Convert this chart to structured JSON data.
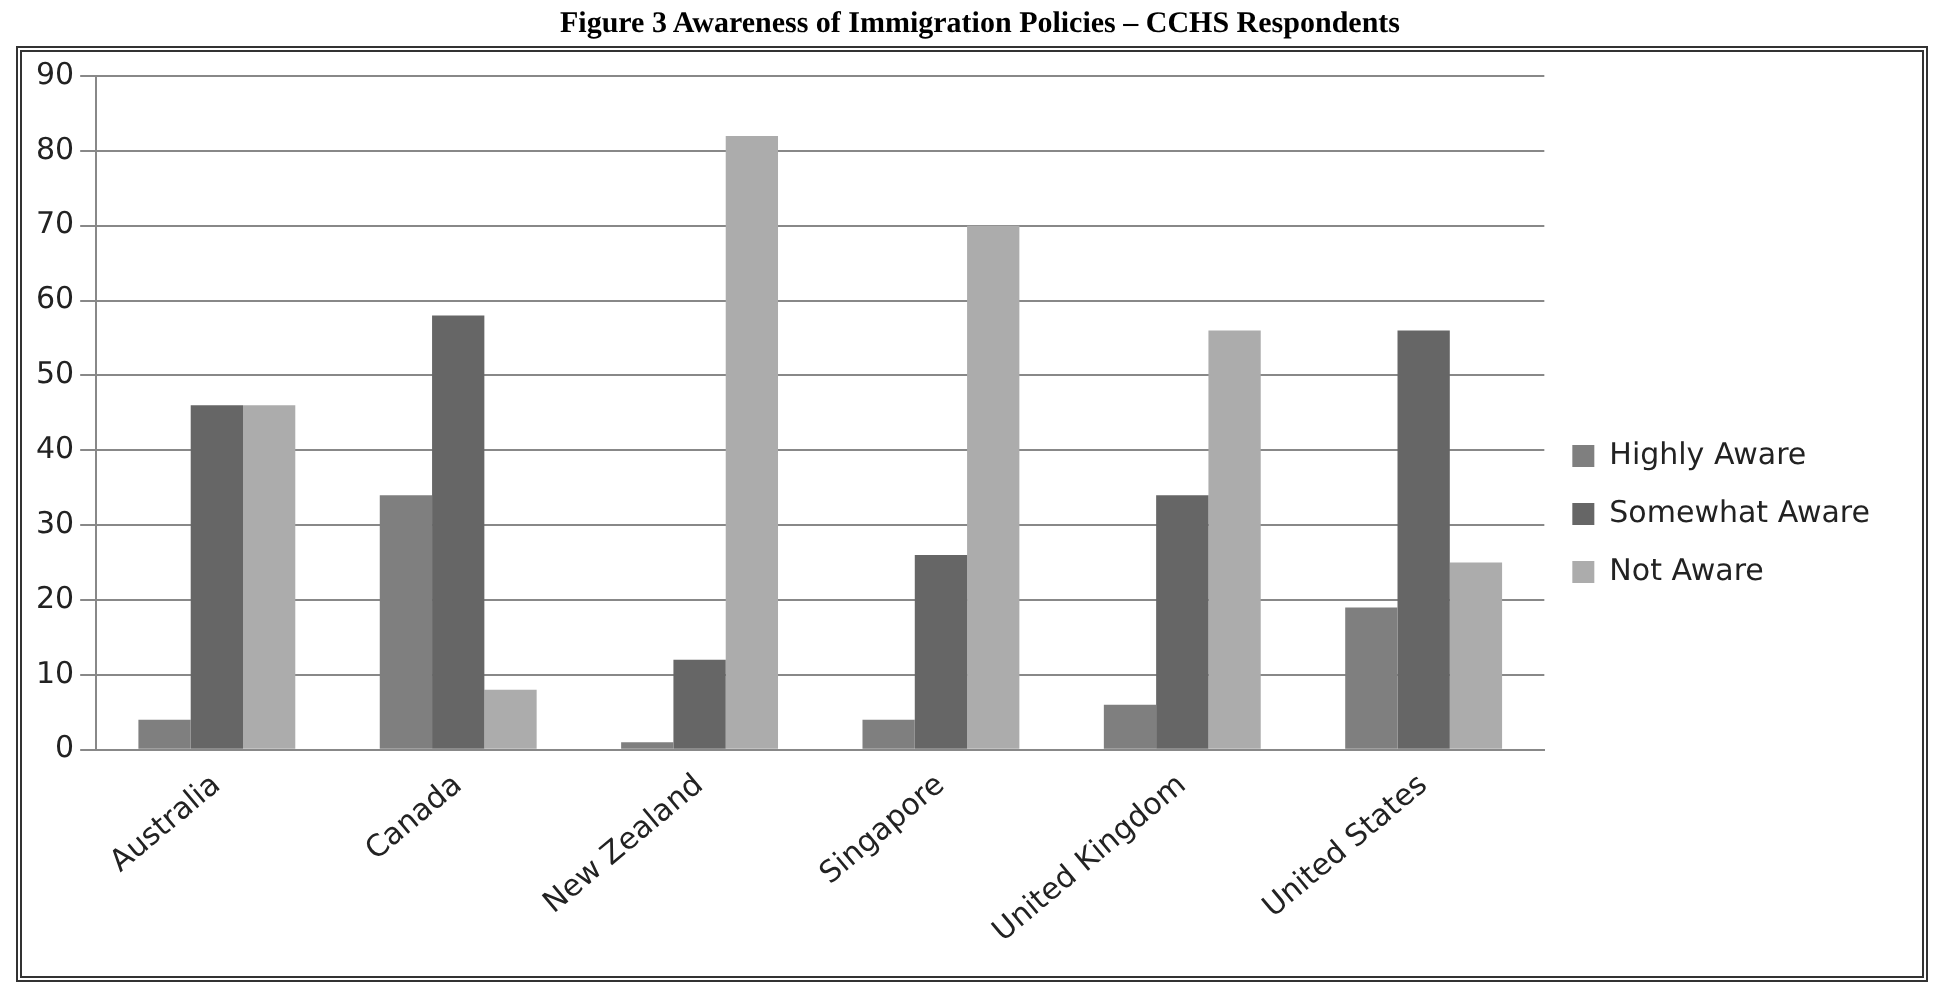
{
  "chart_data": {
    "type": "bar",
    "title": "Figure 3 Awareness of Immigration Policies – CCHS Respondents",
    "categories": [
      "Australia",
      "Canada",
      "New Zealand",
      "Singapore",
      "United Kingdom",
      "United States"
    ],
    "series": [
      {
        "name": "Highly Aware",
        "color": "#7f7f7f",
        "values": [
          4,
          34,
          1,
          4,
          6,
          19
        ]
      },
      {
        "name": "Somewhat Aware",
        "color": "#666666",
        "values": [
          46,
          58,
          12,
          26,
          34,
          56
        ]
      },
      {
        "name": "Not Aware",
        "color": "#acacac",
        "values": [
          46,
          8,
          82,
          70,
          56,
          25
        ]
      }
    ],
    "ylim": [
      0,
      90
    ],
    "yticks": [
      0,
      10,
      20,
      30,
      40,
      50,
      60,
      70,
      80,
      90
    ],
    "grid": "y",
    "legend": "right"
  }
}
